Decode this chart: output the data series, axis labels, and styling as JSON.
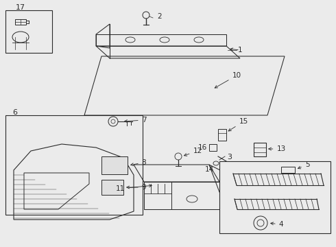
{
  "bg_color": "#ebebeb",
  "line_color": "#2a2a2a",
  "lw": 0.75,
  "fig_w": 4.9,
  "fig_h": 3.6,
  "dpi": 100
}
